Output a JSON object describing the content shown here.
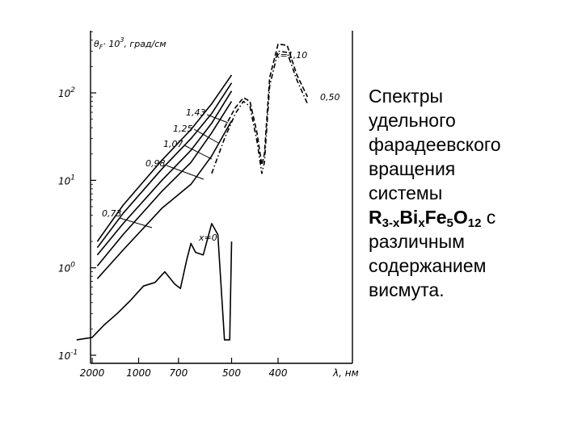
{
  "caption": {
    "line1": "Спектры",
    "line2": "удельного",
    "line3": "фарадеевского",
    "line4": "вращения",
    "line5": "системы",
    "formula": {
      "r": "R",
      "r_sub": "3-x",
      "bi": "Bi",
      "bi_sub": "x",
      "fe": "Fe",
      "fe_sub": "5",
      "o": "O",
      "o_sub": "12",
      "tail": " с"
    },
    "line7": "различным",
    "line8": "содержанием",
    "line9": "висмута."
  },
  "chart_data": {
    "type": "line",
    "title": "",
    "ylabel": "θF· 10^3, град/см",
    "xlabel": "λ, нм",
    "y_scale": "log",
    "ylim": [
      0.1,
      1000
    ],
    "y_ticks": [
      {
        "value": 100,
        "label": "10^2"
      },
      {
        "value": 10,
        "label": "10^1"
      },
      {
        "value": 1,
        "label": "10^0"
      },
      {
        "value": 0.1,
        "label": "10^-1"
      }
    ],
    "x_scale": "reciprocal",
    "x_ticks": [
      {
        "value": 2000,
        "label": "2000"
      },
      {
        "value": 1000,
        "label": "1000"
      },
      {
        "value": 700,
        "label": "700"
      },
      {
        "value": 500,
        "label": "500"
      },
      {
        "value": 400,
        "label": "400"
      }
    ],
    "grid": false,
    "series": [
      {
        "name": "x=0",
        "style": "solid",
        "points": [
          [
            3000,
            0.15
          ],
          [
            2000,
            0.16
          ],
          [
            1600,
            0.22
          ],
          [
            1300,
            0.3
          ],
          [
            1100,
            0.42
          ],
          [
            950,
            0.62
          ],
          [
            850,
            0.68
          ],
          [
            780,
            0.9
          ],
          [
            720,
            0.65
          ],
          [
            690,
            0.58
          ],
          [
            660,
            1.2
          ],
          [
            640,
            1.9
          ],
          [
            620,
            1.5
          ],
          [
            590,
            1.4
          ],
          [
            560,
            3.2
          ],
          [
            540,
            2.4
          ],
          [
            520,
            0.15
          ],
          [
            505,
            0.15
          ],
          [
            500,
            2.0
          ]
        ]
      },
      {
        "name": "0,73",
        "style": "solid",
        "points": [
          [
            1800,
            0.75
          ],
          [
            1200,
            1.6
          ],
          [
            800,
            4.8
          ],
          [
            640,
            9
          ],
          [
            560,
            19
          ],
          [
            500,
            48
          ]
        ]
      },
      {
        "name": "0,98",
        "style": "solid",
        "points": [
          [
            1800,
            1.05
          ],
          [
            1200,
            2.4
          ],
          [
            800,
            7.5
          ],
          [
            640,
            16
          ],
          [
            560,
            35
          ],
          [
            500,
            80
          ]
        ]
      },
      {
        "name": "1,07",
        "style": "solid",
        "points": [
          [
            1800,
            1.4
          ],
          [
            1200,
            3.2
          ],
          [
            800,
            10
          ],
          [
            640,
            22
          ],
          [
            560,
            45
          ],
          [
            500,
            105
          ]
        ]
      },
      {
        "name": "1,25",
        "style": "solid",
        "points": [
          [
            1800,
            1.7
          ],
          [
            1200,
            4.2
          ],
          [
            800,
            13.5
          ],
          [
            640,
            30
          ],
          [
            560,
            58
          ],
          [
            500,
            130
          ]
        ]
      },
      {
        "name": "1,43",
        "style": "solid",
        "points": [
          [
            1800,
            2.0
          ],
          [
            1200,
            5.2
          ],
          [
            800,
            17
          ],
          [
            640,
            38
          ],
          [
            560,
            75
          ],
          [
            500,
            160
          ]
        ]
      },
      {
        "name": "x=1,10",
        "style": "dashed",
        "points": [
          [
            520,
            40
          ],
          [
            490,
            68
          ],
          [
            470,
            88
          ],
          [
            455,
            80
          ],
          [
            440,
            35
          ],
          [
            430,
            15
          ],
          [
            425,
            20
          ],
          [
            415,
            150
          ],
          [
            400,
            360
          ],
          [
            385,
            350
          ],
          [
            370,
            160
          ],
          [
            355,
            90
          ]
        ]
      },
      {
        "name": "0,50",
        "style": "dash-dot",
        "points": [
          [
            560,
            12
          ],
          [
            520,
            30
          ],
          [
            490,
            58
          ],
          [
            470,
            80
          ],
          [
            455,
            70
          ],
          [
            440,
            28
          ],
          [
            430,
            12
          ],
          [
            425,
            16
          ],
          [
            415,
            120
          ],
          [
            400,
            300
          ],
          [
            385,
            290
          ],
          [
            370,
            140
          ],
          [
            355,
            75
          ]
        ]
      }
    ]
  }
}
